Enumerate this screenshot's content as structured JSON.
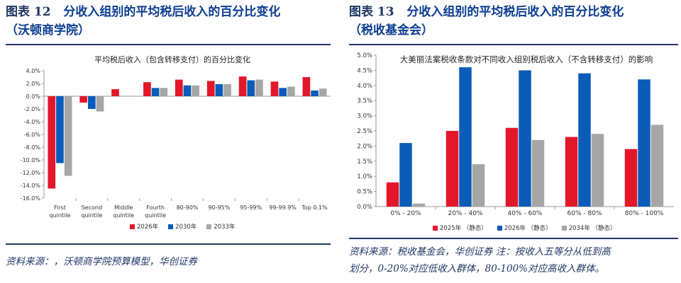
{
  "left": {
    "figure_label": "图表 12",
    "title_line1": "分收入组别的平均税后收入的百分比变化",
    "title_line2": "（沃顿商学院）",
    "source": "资料来源：，沃顿商学院预算模型，华创证券"
  },
  "right": {
    "figure_label": "图表 13",
    "title_line1": "分收入组别的平均税后收入的百分比变化",
    "title_line2": "（税收基金会）",
    "source_line1": "资料来源：税收基金会，华创证券 注：按收入五等分从低到高",
    "source_line2": "划分，0-20%对应低收入群体，80-100%对应高收入群体。"
  },
  "colors": {
    "red": "#e3172a",
    "blue": "#0a5cb8",
    "gray": "#a6a6a6",
    "navy": "#1f3864"
  },
  "chart_data": [
    {
      "type": "bar",
      "title": "平均税后收入（包含转移支付）的百分比变化",
      "categories": [
        "First quintile",
        "Second quintile",
        "Middle quintile",
        "Fourth quintile",
        "80-90%",
        "90-95%",
        "95-99%",
        "99-99.9%",
        "Top 0.1%"
      ],
      "tick_labels": [
        [
          "First",
          "quintile"
        ],
        [
          "Second",
          "quintile"
        ],
        [
          "Middle",
          "quintile"
        ],
        [
          "Fourth",
          "quintile"
        ],
        [
          "80-90%"
        ],
        [
          "90-95%"
        ],
        [
          "95-99%"
        ],
        [
          "99-99.9%"
        ],
        [
          "Top 0.1%"
        ]
      ],
      "series": [
        {
          "name": "2026年",
          "values": [
            -14.5,
            -1.0,
            1.1,
            2.2,
            2.6,
            2.4,
            3.1,
            2.3,
            3.0
          ]
        },
        {
          "name": "2030年",
          "values": [
            -10.5,
            -2.0,
            0.0,
            1.3,
            1.7,
            1.9,
            2.5,
            1.3,
            0.9
          ]
        },
        {
          "name": "2033年",
          "values": [
            -12.5,
            -2.4,
            0.0,
            1.3,
            1.7,
            1.9,
            2.6,
            1.5,
            1.2
          ]
        }
      ],
      "ylim": [
        -16,
        4
      ],
      "yticks": [
        "4.0%",
        "2.0%",
        "0.0%",
        "-2.0%",
        "-4.0%",
        "-6.0%",
        "-8.0%",
        "-10.0%",
        "-12.0%",
        "-14.0%",
        "-16.0%"
      ],
      "legend": "bottom",
      "grid": false
    },
    {
      "type": "bar",
      "title": "大美丽法案税收条款对不同收入组别税后收入（不含转移支付）的影响",
      "categories": [
        "0% - 20%",
        "20% - 40%",
        "40% - 60%",
        "60% - 80%",
        "80% - 100%"
      ],
      "series": [
        {
          "name": "2025年 （静态）",
          "values": [
            0.8,
            2.5,
            2.6,
            2.3,
            1.9
          ]
        },
        {
          "name": "2026年 （静态）",
          "values": [
            2.1,
            4.6,
            4.5,
            4.4,
            4.2
          ]
        },
        {
          "name": "2034年 （静态）",
          "values": [
            0.1,
            1.4,
            2.2,
            2.4,
            2.7
          ]
        }
      ],
      "ylim": [
        0,
        5
      ],
      "yticks": [
        "5.0%",
        "4.5%",
        "4.0%",
        "3.5%",
        "3.0%",
        "2.5%",
        "2.0%",
        "1.5%",
        "1.0%",
        "0.5%",
        "0.0%"
      ],
      "legend": "bottom",
      "grid": false
    }
  ]
}
